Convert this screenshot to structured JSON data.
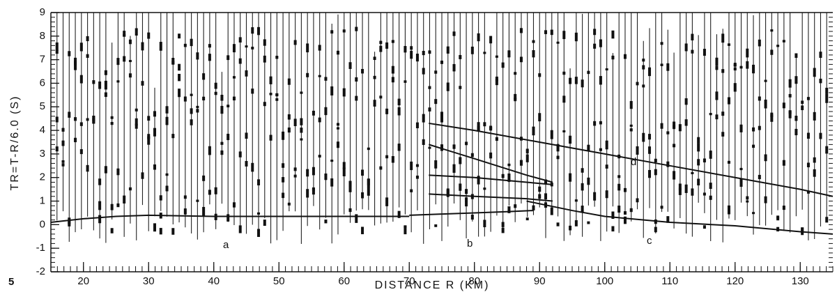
{
  "chart_data": {
    "type": "line",
    "x_label": "DISTANCE R (KM)",
    "y_label": "TR=T-R/6.0 (S)",
    "xlim": [
      15,
      135
    ],
    "ylim": [
      -2,
      9
    ],
    "xticks": [
      20,
      30,
      40,
      50,
      60,
      70,
      80,
      90,
      100,
      110,
      120,
      130
    ],
    "yticks": [
      -2,
      -1,
      0,
      1,
      2,
      3,
      4,
      5,
      6,
      7,
      8,
      9
    ],
    "series": [
      {
        "color": "#111111",
        "x": [
          15,
          20,
          25,
          30,
          40,
          50,
          60,
          70
        ],
        "values": [
          0.1,
          0.25,
          0.35,
          0.4,
          0.35,
          0.35,
          0.35,
          0.35
        ]
      },
      {
        "color": "#111111",
        "x": [
          70,
          75,
          80,
          85,
          89
        ],
        "values": [
          0.4,
          0.45,
          0.5,
          0.55,
          0.6
        ]
      },
      {
        "color": "#111111",
        "x": [
          88,
          95,
          100,
          110,
          120,
          130,
          135
        ],
        "values": [
          1.0,
          0.6,
          0.35,
          0.1,
          -0.05,
          -0.3,
          -0.4
        ]
      },
      {
        "color": "#111111",
        "x": [
          73,
          80,
          90,
          100,
          110,
          120,
          130,
          135
        ],
        "values": [
          4.3,
          4.0,
          3.5,
          3.0,
          2.5,
          2.0,
          1.5,
          1.2
        ]
      },
      {
        "color": "#111111",
        "x": [
          73,
          80,
          88,
          92
        ],
        "values": [
          3.4,
          2.8,
          2.1,
          1.8
        ]
      },
      {
        "color": "#111111",
        "x": [
          73,
          80,
          88,
          92
        ],
        "values": [
          2.1,
          2.0,
          1.8,
          1.7
        ]
      },
      {
        "color": "#111111",
        "x": [
          73,
          80,
          88,
          92
        ],
        "values": [
          1.3,
          1.2,
          1.1,
          1.0
        ]
      }
    ],
    "annotations": [
      "a",
      "b",
      "c",
      "d",
      "5"
    ]
  }
}
